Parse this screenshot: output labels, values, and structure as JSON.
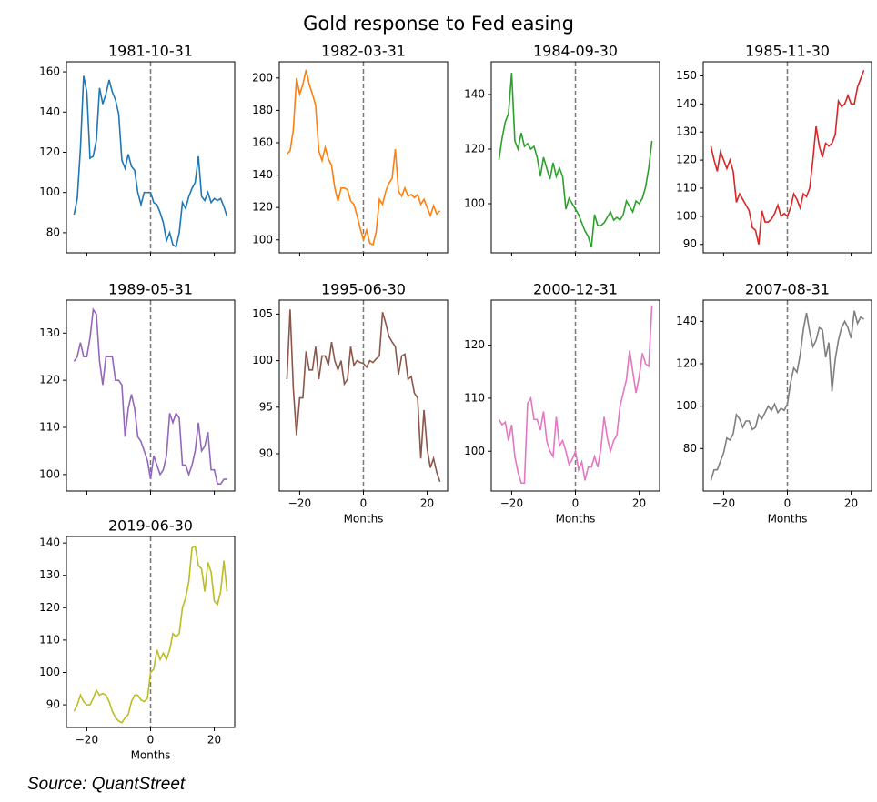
{
  "title": "Gold response to Fed easing",
  "source": "Source: QuantStreet",
  "chart_data": [
    {
      "type": "line",
      "title": "1981-10-31",
      "color": "#1f77b4",
      "vline": 0,
      "x": [
        -24,
        -23,
        -22,
        -21,
        -20,
        -19,
        -18,
        -17,
        -16,
        -15,
        -14,
        -13,
        -12,
        -11,
        -10,
        -9,
        -8,
        -7,
        -6,
        -5,
        -4,
        -3,
        -2,
        -1,
        0,
        1,
        2,
        3,
        4,
        5,
        6,
        7,
        8,
        9,
        10,
        11,
        12,
        13,
        14,
        15,
        16,
        17,
        18,
        19,
        20,
        21,
        22,
        23,
        24
      ],
      "values": [
        89,
        97,
        122,
        158,
        150,
        117,
        118,
        126,
        152,
        144,
        149,
        156,
        150,
        146,
        139,
        116,
        112,
        119,
        113,
        111,
        100,
        94,
        100,
        100,
        100,
        95,
        94,
        90,
        85,
        76,
        80,
        74,
        73,
        80,
        95,
        92,
        98,
        102,
        105,
        118,
        98,
        96,
        100,
        95,
        97,
        96,
        97,
        93,
        88
      ],
      "xlim": [
        -26.4,
        26.4
      ],
      "xticks": [
        -20,
        0,
        20
      ],
      "x_tick_labels": false,
      "ylim": [
        70,
        165
      ],
      "yticks": [
        80,
        100,
        120,
        140,
        160
      ]
    },
    {
      "type": "line",
      "title": "1982-03-31",
      "color": "#ff7f0e",
      "vline": 0,
      "x": [
        -24,
        -23,
        -22,
        -21,
        -20,
        -19,
        -18,
        -17,
        -16,
        -15,
        -14,
        -13,
        -12,
        -11,
        -10,
        -9,
        -8,
        -7,
        -6,
        -5,
        -4,
        -3,
        -2,
        -1,
        0,
        1,
        2,
        3,
        4,
        5,
        6,
        7,
        8,
        9,
        10,
        11,
        12,
        13,
        14,
        15,
        16,
        17,
        18,
        19,
        20,
        21,
        22,
        23,
        24
      ],
      "values": [
        153,
        155,
        168,
        200,
        190,
        196,
        205,
        196,
        190,
        183,
        155,
        149,
        157,
        150,
        146,
        132,
        124,
        132,
        132,
        131,
        124,
        122,
        115,
        107,
        100,
        106,
        98,
        97,
        105,
        125,
        122,
        130,
        135,
        138,
        156,
        130,
        127,
        132,
        127,
        128,
        126,
        128,
        122,
        125,
        120,
        115,
        121,
        116,
        118
      ],
      "xlim": [
        -26.4,
        26.4
      ],
      "xticks": [
        -20,
        0,
        20
      ],
      "x_tick_labels": false,
      "ylim": [
        92,
        210
      ],
      "yticks": [
        100,
        120,
        140,
        160,
        180,
        200
      ]
    },
    {
      "type": "line",
      "title": "1984-09-30",
      "color": "#2ca02c",
      "vline": 0,
      "x": [
        -24,
        -23,
        -22,
        -21,
        -20,
        -19,
        -18,
        -17,
        -16,
        -15,
        -14,
        -13,
        -12,
        -11,
        -10,
        -9,
        -8,
        -7,
        -6,
        -5,
        -4,
        -3,
        -2,
        -1,
        0,
        1,
        2,
        3,
        4,
        5,
        6,
        7,
        8,
        9,
        10,
        11,
        12,
        13,
        14,
        15,
        16,
        17,
        18,
        19,
        20,
        21,
        22,
        23,
        24
      ],
      "values": [
        116,
        124,
        130,
        133,
        148,
        123,
        120,
        126,
        121,
        122,
        120,
        121,
        117,
        110,
        117,
        113,
        109,
        115,
        110,
        113,
        110,
        98,
        102,
        100,
        98,
        96,
        93,
        90,
        88,
        84,
        96,
        92,
        92,
        93,
        95,
        97,
        94,
        95,
        94,
        96,
        101,
        99,
        97,
        101,
        100,
        102,
        106,
        113,
        123
      ],
      "xlim": [
        -26.4,
        26.4
      ],
      "xticks": [
        -20,
        0,
        20
      ],
      "x_tick_labels": false,
      "ylim": [
        82,
        152
      ],
      "yticks": [
        100,
        120,
        140
      ]
    },
    {
      "type": "line",
      "title": "1985-11-30",
      "color": "#d62728",
      "vline": 0,
      "x": [
        -24,
        -23,
        -22,
        -21,
        -20,
        -19,
        -18,
        -17,
        -16,
        -15,
        -14,
        -13,
        -12,
        -11,
        -10,
        -9,
        -8,
        -7,
        -6,
        -5,
        -4,
        -3,
        -2,
        -1,
        0,
        1,
        2,
        3,
        4,
        5,
        6,
        7,
        8,
        9,
        10,
        11,
        12,
        13,
        14,
        15,
        16,
        17,
        18,
        19,
        20,
        21,
        22,
        23,
        24
      ],
      "values": [
        125,
        120,
        116,
        123,
        120,
        117,
        120,
        116,
        105,
        108,
        106,
        104,
        102,
        96,
        95,
        90,
        102,
        98,
        98,
        99,
        101,
        104,
        100,
        101,
        100,
        103,
        108,
        106,
        103,
        108,
        107,
        110,
        120,
        132,
        125,
        121,
        126,
        125,
        126,
        129,
        141,
        139,
        140,
        143,
        140,
        140,
        146,
        149,
        152
      ],
      "xlim": [
        -26.4,
        26.4
      ],
      "xticks": [
        -20,
        0,
        20
      ],
      "x_tick_labels": false,
      "ylim": [
        87,
        155
      ],
      "yticks": [
        90,
        100,
        110,
        120,
        130,
        140,
        150
      ]
    },
    {
      "type": "line",
      "title": "1989-05-31",
      "color": "#9467bd",
      "vline": 0,
      "x": [
        -24,
        -23,
        -22,
        -21,
        -20,
        -19,
        -18,
        -17,
        -16,
        -15,
        -14,
        -13,
        -12,
        -11,
        -10,
        -9,
        -8,
        -7,
        -6,
        -5,
        -4,
        -3,
        -2,
        -1,
        0,
        1,
        2,
        3,
        4,
        5,
        6,
        7,
        8,
        9,
        10,
        11,
        12,
        13,
        14,
        15,
        16,
        17,
        18,
        19,
        20,
        21,
        22,
        23,
        24
      ],
      "values": [
        124,
        125,
        128,
        125,
        125,
        129,
        135,
        134,
        124,
        119,
        125,
        125,
        125,
        120,
        120,
        119,
        108,
        114,
        117,
        114,
        108,
        107,
        105,
        103,
        99,
        104,
        102,
        100,
        101,
        104,
        113,
        111,
        113,
        112,
        102,
        102,
        100,
        102,
        105,
        111,
        105,
        106,
        109,
        101,
        101,
        98,
        98,
        99,
        99
      ],
      "xlim": [
        -26.4,
        26.4
      ],
      "xticks": [
        -20,
        0,
        20
      ],
      "x_tick_labels": false,
      "ylim": [
        96.5,
        137
      ],
      "yticks": [
        100,
        110,
        120,
        130
      ]
    },
    {
      "type": "line",
      "title": "1995-06-30",
      "color": "#8c564b",
      "vline": 0,
      "xlabel": "Months",
      "x": [
        -24,
        -23,
        -22,
        -21,
        -20,
        -19,
        -18,
        -17,
        -16,
        -15,
        -14,
        -13,
        -12,
        -11,
        -10,
        -9,
        -8,
        -7,
        -6,
        -5,
        -4,
        -3,
        -2,
        -1,
        0,
        1,
        2,
        3,
        4,
        5,
        6,
        7,
        8,
        9,
        10,
        11,
        12,
        13,
        14,
        15,
        16,
        17,
        18,
        19,
        20,
        21,
        22,
        23,
        24
      ],
      "values": [
        98,
        105.5,
        97,
        92,
        96,
        96,
        101,
        99,
        99,
        101.5,
        98,
        100.5,
        100.5,
        99.5,
        102,
        100,
        99,
        100,
        97.5,
        98,
        101.5,
        99.5,
        100,
        99.8,
        99.7,
        99.3,
        100,
        99.8,
        100.2,
        100.5,
        105.2,
        104,
        102.6,
        102,
        101.5,
        98.5,
        100.5,
        100.7,
        98,
        98.3,
        96.5,
        96,
        89.5,
        94.7,
        90.5,
        88.5,
        89.5,
        88,
        87
      ],
      "xlim": [
        -26.4,
        26.4
      ],
      "xticks": [
        {
          "value": -20,
          "label": "−20"
        },
        0,
        20
      ],
      "x_tick_labels": true,
      "ylim": [
        86,
        106.5
      ],
      "yticks": [
        90,
        95,
        100,
        105
      ]
    },
    {
      "type": "line",
      "title": "2000-12-31",
      "color": "#e377c2",
      "vline": 0,
      "xlabel": "Months",
      "x": [
        -24,
        -23,
        -22,
        -21,
        -20,
        -19,
        -18,
        -17,
        -16,
        -15,
        -14,
        -13,
        -12,
        -11,
        -10,
        -9,
        -8,
        -7,
        -6,
        -5,
        -4,
        -3,
        -2,
        -1,
        0,
        1,
        2,
        3,
        4,
        5,
        6,
        7,
        8,
        9,
        10,
        11,
        12,
        13,
        14,
        15,
        16,
        17,
        18,
        19,
        20,
        21,
        22,
        23,
        24
      ],
      "values": [
        106,
        105,
        105.5,
        102,
        105,
        99,
        96,
        94,
        94,
        109,
        110,
        106,
        106,
        104,
        107.5,
        102,
        100,
        99,
        106.5,
        101,
        102,
        100,
        97.5,
        98.5,
        100,
        96.5,
        98,
        94.5,
        97,
        97,
        99,
        97,
        100.5,
        106.5,
        102.5,
        100,
        102,
        103,
        108.5,
        111,
        113.5,
        119,
        115,
        111,
        114,
        118.5,
        116.5,
        116,
        127.5
      ],
      "xlim": [
        -26.4,
        26.4
      ],
      "xticks": [
        {
          "value": -20,
          "label": "−20"
        },
        0,
        20
      ],
      "x_tick_labels": true,
      "ylim": [
        92.5,
        128.5
      ],
      "yticks": [
        100,
        110,
        120
      ]
    },
    {
      "type": "line",
      "title": "2007-08-31",
      "color": "#7f7f7f",
      "vline": 0,
      "xlabel": "Months",
      "x": [
        -24,
        -23,
        -22,
        -21,
        -20,
        -19,
        -18,
        -17,
        -16,
        -15,
        -14,
        -13,
        -12,
        -11,
        -10,
        -9,
        -8,
        -7,
        -6,
        -5,
        -4,
        -3,
        -2,
        -1,
        0,
        1,
        2,
        3,
        4,
        5,
        6,
        7,
        8,
        9,
        10,
        11,
        12,
        13,
        14,
        15,
        16,
        17,
        18,
        19,
        20,
        21,
        22,
        23,
        24
      ],
      "values": [
        65,
        70,
        70,
        74,
        78,
        85,
        84,
        87,
        96,
        94,
        90,
        93,
        93,
        89,
        90,
        96,
        94,
        97,
        100,
        98,
        101,
        97,
        99,
        98,
        101,
        111,
        118,
        116,
        124,
        136,
        144,
        135,
        128,
        131,
        137,
        136,
        123,
        130,
        107,
        122,
        131,
        137,
        140,
        137,
        132,
        145,
        139,
        142,
        141
      ],
      "xlim": [
        -26.4,
        26.4
      ],
      "xticks": [
        {
          "value": -20,
          "label": "−20"
        },
        0,
        20
      ],
      "x_tick_labels": true,
      "ylim": [
        60,
        150
      ],
      "yticks": [
        80,
        100,
        120,
        140
      ]
    },
    {
      "type": "line",
      "title": "2019-06-30",
      "color": "#bcbd22",
      "vline": 0,
      "xlabel": "Months",
      "x": [
        -24,
        -23,
        -22,
        -21,
        -20,
        -19,
        -18,
        -17,
        -16,
        -15,
        -14,
        -13,
        -12,
        -11,
        -10,
        -9,
        -8,
        -7,
        -6,
        -5,
        -4,
        -3,
        -2,
        -1,
        0,
        1,
        2,
        3,
        4,
        5,
        6,
        7,
        8,
        9,
        10,
        11,
        12,
        13,
        14,
        15,
        16,
        17,
        18,
        19,
        20,
        21,
        22,
        23,
        24
      ],
      "values": [
        88,
        90,
        93,
        91,
        90,
        90,
        92,
        94.5,
        93,
        93.5,
        93,
        91,
        88,
        86,
        85,
        84.5,
        86,
        87,
        91,
        93,
        93,
        91.5,
        91,
        92,
        100,
        101,
        107,
        104,
        106,
        104,
        107,
        112,
        111,
        112,
        120,
        123,
        128,
        138.5,
        139,
        133,
        132,
        125,
        134,
        131,
        122,
        121,
        125,
        134.5,
        125
      ],
      "xlim": [
        -26.4,
        26.4
      ],
      "xticks": [
        {
          "value": -20,
          "label": "−20"
        },
        0,
        20
      ],
      "x_tick_labels": true,
      "ylim": [
        83,
        142
      ],
      "yticks": [
        90,
        100,
        110,
        120,
        130,
        140
      ]
    }
  ]
}
